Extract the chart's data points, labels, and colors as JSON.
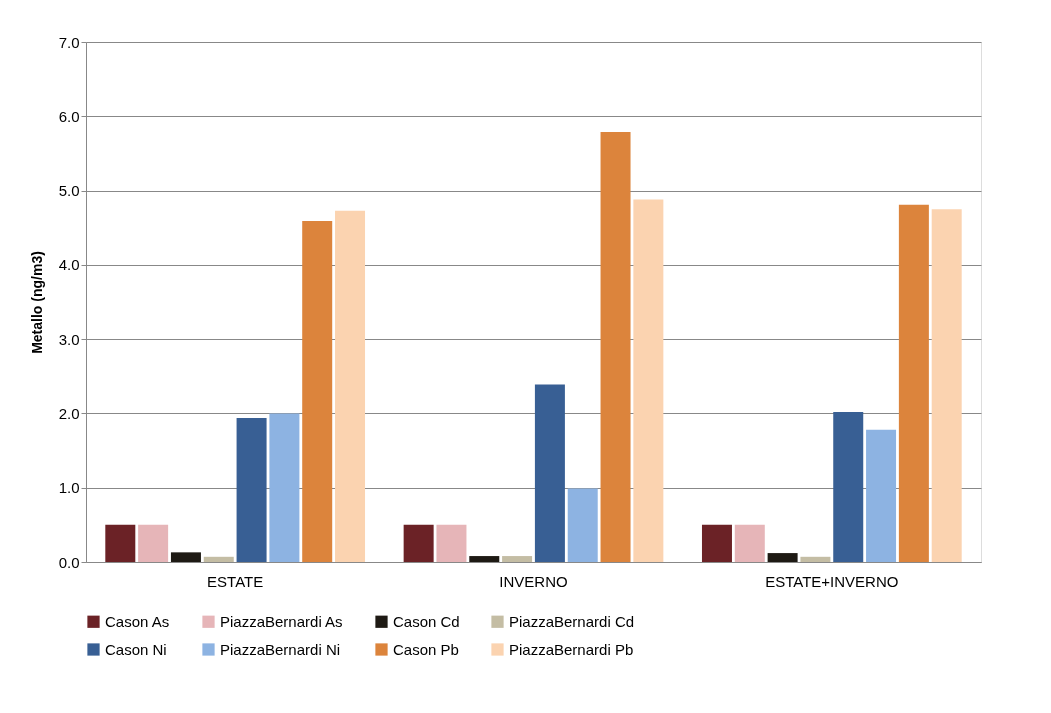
{
  "chart_data": {
    "type": "bar",
    "ylabel": "Metallo (ng/m3)",
    "categories": [
      "ESTATE",
      "INVERNO",
      "ESTATE+INVERNO"
    ],
    "series": [
      {
        "name": "Cason As",
        "color": "#6b2226",
        "values": [
          0.5,
          0.5,
          0.5
        ]
      },
      {
        "name": "PiazzaBernardi As",
        "color": "#e6b5b8",
        "values": [
          0.5,
          0.5,
          0.5
        ]
      },
      {
        "name": "Cason Cd",
        "color": "#1e1a14",
        "values": [
          0.13,
          0.08,
          0.12
        ]
      },
      {
        "name": "PiazzaBernardi Cd",
        "color": "#c4bda4",
        "values": [
          0.07,
          0.08,
          0.07
        ]
      },
      {
        "name": "Cason Ni",
        "color": "#385f94",
        "values": [
          1.94,
          2.39,
          2.02
        ]
      },
      {
        "name": "PiazzaBernardi Ni",
        "color": "#8db3e2",
        "values": [
          2.0,
          0.99,
          1.78
        ]
      },
      {
        "name": "Cason Pb",
        "color": "#dc843c",
        "values": [
          4.59,
          5.79,
          4.81
        ]
      },
      {
        "name": "PiazzaBernardi Pb",
        "color": "#fbd3b0",
        "values": [
          4.73,
          4.88,
          4.75
        ]
      }
    ],
    "ylim": [
      0,
      7
    ],
    "yticks": [
      {
        "value": 0,
        "label": "0.0"
      },
      {
        "value": 1,
        "label": "1.0"
      },
      {
        "value": 2,
        "label": "2.0"
      },
      {
        "value": 3,
        "label": "3.0"
      },
      {
        "value": 4,
        "label": "4.0"
      },
      {
        "value": 5,
        "label": "5.0"
      },
      {
        "value": 6,
        "label": "6.0"
      },
      {
        "value": 7,
        "label": "7.0"
      }
    ],
    "grid": "y",
    "legend": "bottom"
  }
}
